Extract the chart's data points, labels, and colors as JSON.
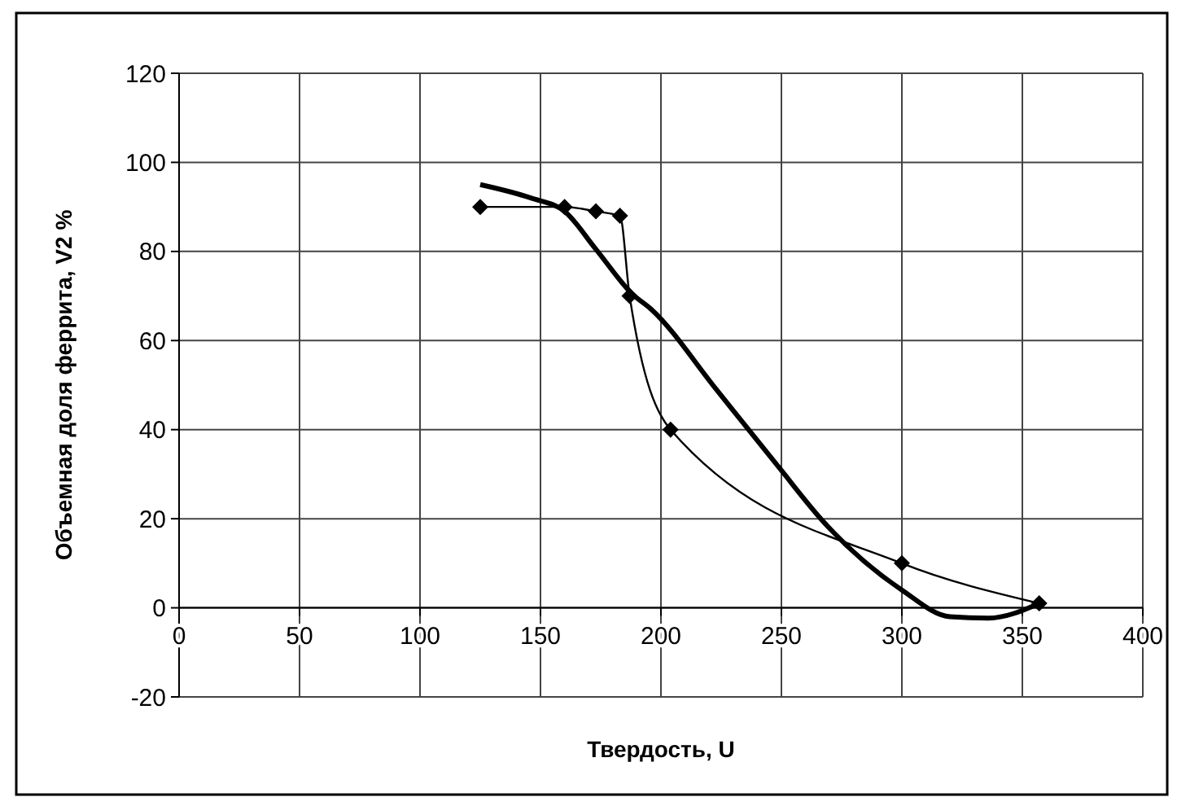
{
  "chart_data": {
    "type": "line",
    "xlabel": "Твердость, U",
    "ylabel": "Объемная доля феррита, V2 %",
    "xlim": [
      0,
      400
    ],
    "ylim": [
      -20,
      120
    ],
    "xticks": [
      0,
      50,
      100,
      150,
      200,
      250,
      300,
      350,
      400
    ],
    "yticks": [
      -20,
      0,
      20,
      40,
      60,
      80,
      100,
      120
    ],
    "grid": true,
    "series": [
      {
        "color": "#000000",
        "marker": "diamond",
        "x": [
          125,
          160,
          173,
          183,
          187,
          204,
          300,
          357
        ],
        "values": [
          90,
          90,
          89,
          88,
          70,
          40,
          10,
          1
        ]
      },
      {
        "color": "#000000",
        "marker": "none",
        "x": [
          125,
          146,
          160,
          173,
          188,
          196,
          223,
          249,
          268,
          300,
          320,
          336,
          357
        ],
        "values": [
          95,
          92,
          89,
          80.5,
          70.5,
          67,
          49,
          31.5,
          19,
          4,
          -2,
          -2.3,
          1
        ]
      }
    ]
  }
}
